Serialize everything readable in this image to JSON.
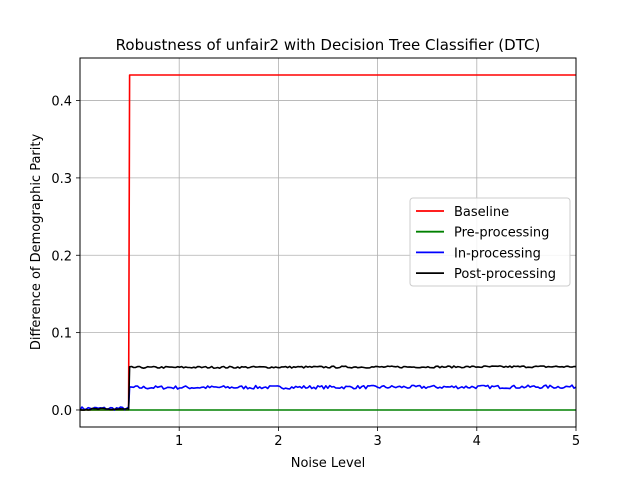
{
  "chart_data": {
    "type": "line",
    "title": "Robustness of unfair2 with Decision Tree Classifier (DTC)",
    "xlabel": "Noise Level",
    "ylabel": "Difference of Demographic Parity",
    "xlim": [
      0.0,
      5.0
    ],
    "ylim": [
      -0.022,
      0.455
    ],
    "xticks": [
      1,
      2,
      3,
      4,
      5
    ],
    "yticks": [
      0.0,
      0.1,
      0.2,
      0.3,
      0.4
    ],
    "xtick_labels": [
      "1",
      "2",
      "3",
      "4",
      "5"
    ],
    "ytick_labels": [
      "0.0",
      "0.1",
      "0.2",
      "0.3",
      "0.4"
    ],
    "grid": true,
    "legend_position": "center-right",
    "series": [
      {
        "name": "Baseline",
        "color": "#ff0000",
        "x": [
          0.0,
          0.49,
          0.5,
          5.0
        ],
        "y": [
          0.0,
          0.0,
          0.433,
          0.433
        ]
      },
      {
        "name": "Pre-processing",
        "color": "#008000",
        "x": [
          0.0,
          5.0
        ],
        "y": [
          0.0,
          0.0
        ]
      },
      {
        "name": "In-processing",
        "color": "#0000ff",
        "x": [
          0.0,
          0.49,
          0.5,
          5.0
        ],
        "y": [
          0.002,
          0.002,
          0.029,
          0.03
        ]
      },
      {
        "name": "Post-processing",
        "color": "#000000",
        "x": [
          0.0,
          0.49,
          0.5,
          5.0
        ],
        "y": [
          0.001,
          0.001,
          0.055,
          0.056
        ]
      }
    ]
  }
}
